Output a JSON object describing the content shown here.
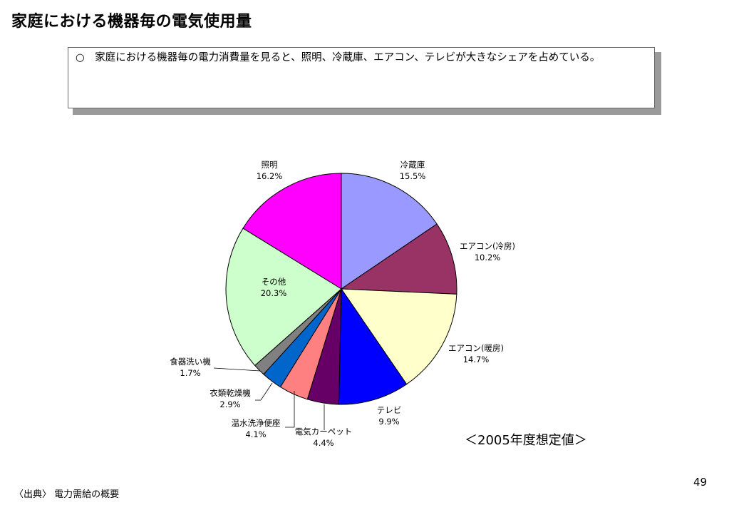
{
  "header": {
    "title": "家庭における機器毎の電気使用量"
  },
  "note": {
    "text": "○　家庭における機器毎の電力消費量を見ると、照明、冷蔵庫、エアコン、テレビが大きなシェアを占めている。"
  },
  "chart_data": {
    "type": "pie",
    "title": "",
    "slices": [
      {
        "name": "冷蔵庫",
        "value": 15.5,
        "value_label": "15.5%",
        "color": "#9999ff"
      },
      {
        "name": "エアコン(冷房)",
        "value": 10.2,
        "value_label": "10.2%",
        "color": "#993366"
      },
      {
        "name": "エアコン(暖房)",
        "value": 14.7,
        "value_label": "14.7%",
        "color": "#ffffcc"
      },
      {
        "name": "テレビ",
        "value": 9.9,
        "value_label": "9.9%",
        "color": "#0000ff"
      },
      {
        "name": "電気カーペット",
        "value": 4.4,
        "value_label": "4.4%",
        "color": "#660066"
      },
      {
        "name": "温水洗浄便座",
        "value": 4.1,
        "value_label": "4.1%",
        "color": "#ff8080"
      },
      {
        "name": "衣類乾燥機",
        "value": 2.9,
        "value_label": "2.9%",
        "color": "#0066cc"
      },
      {
        "name": "食器洗い機",
        "value": 1.7,
        "value_label": "1.7%",
        "color": "#808080"
      },
      {
        "name": "その他",
        "value": 20.3,
        "value_label": "20.3%",
        "color": "#ccffcc"
      },
      {
        "name": "照明",
        "value": 16.2,
        "value_label": "16.2%",
        "color": "#ff00ff"
      }
    ],
    "start_angle": "12 o'clock",
    "direction": "clockwise",
    "legend": "none (labels placed around the pie)"
  },
  "annotation": {
    "estimate_label": "＜2005年度想定値＞"
  },
  "footer": {
    "source": "〈出典〉 電力需給の概要",
    "page_number": "49"
  }
}
